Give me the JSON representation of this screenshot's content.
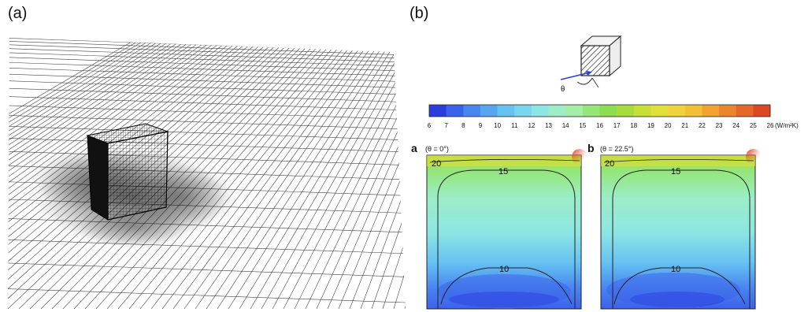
{
  "panels": {
    "a_label": "(a)",
    "b_label": "(b)"
  },
  "inset": {
    "theta_symbol": "θ"
  },
  "colorbar": {
    "ticks": [
      "6",
      "7",
      "8",
      "9",
      "10",
      "11",
      "12",
      "13",
      "14",
      "15",
      "16",
      "17",
      "18",
      "19",
      "20",
      "21",
      "22",
      "23",
      "24",
      "25",
      "26"
    ],
    "unit": "(W/m²K)",
    "colors": [
      "#2a3ee0",
      "#3b62ea",
      "#4a86f0",
      "#58a6f2",
      "#66c2f2",
      "#7ad6ee",
      "#8ee6e2",
      "#9cedc8",
      "#a6eea6",
      "#94e678",
      "#8edc52",
      "#a6dc3e",
      "#c6e038",
      "#e0e03a",
      "#eed43a",
      "#f2c036",
      "#f2a432",
      "#ec862e",
      "#e4682a",
      "#dc4826"
    ]
  },
  "contour_maps": [
    {
      "letter": "a",
      "angle_label": "(θ = 0°)",
      "levels": [
        "20",
        "15",
        "10"
      ]
    },
    {
      "letter": "b",
      "angle_label": "(θ = 22.5°)",
      "levels": [
        "20",
        "15",
        "10"
      ]
    }
  ]
}
